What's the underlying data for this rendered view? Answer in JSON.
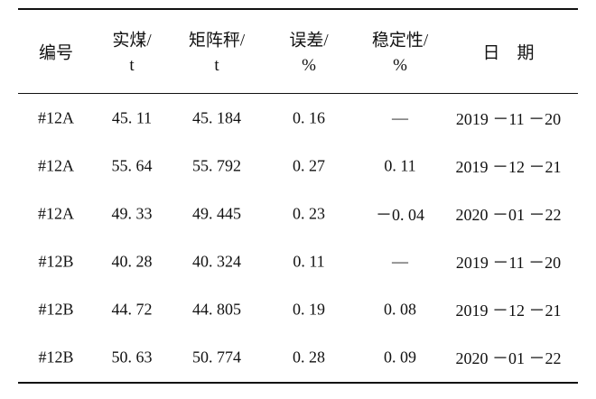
{
  "table": {
    "header": [
      [
        "编号"
      ],
      [
        "实煤/",
        "t"
      ],
      [
        "矩阵秤/",
        "t"
      ],
      [
        "误差/",
        "%"
      ],
      [
        "稳定性/",
        "%"
      ],
      [
        "日　期"
      ]
    ],
    "rows": [
      [
        "#12A",
        "45. 11",
        "45. 184",
        "0. 16",
        "—",
        "2019 －11 －20"
      ],
      [
        "#12A",
        "55. 64",
        "55. 792",
        "0. 27",
        "0. 11",
        "2019 －12 －21"
      ],
      [
        "#12A",
        "49. 33",
        "49. 445",
        "0. 23",
        "－0. 04",
        "2020 －01 －22"
      ],
      [
        "#12B",
        "40. 28",
        "40. 324",
        "0. 11",
        "—",
        "2019 －11 －20"
      ],
      [
        "#12B",
        "44. 72",
        "44. 805",
        "0. 19",
        "0. 08",
        "2019 －12 －21"
      ],
      [
        "#12B",
        "50. 63",
        "50. 774",
        "0. 28",
        "0. 09",
        "2020 －01 －22"
      ]
    ]
  }
}
